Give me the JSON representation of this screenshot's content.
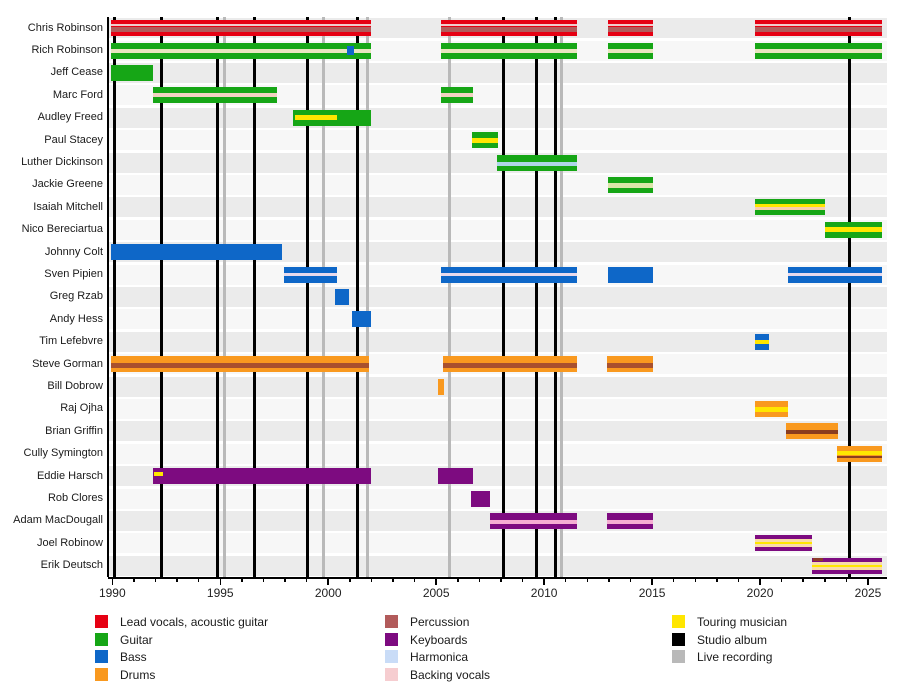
{
  "chart_data": {
    "type": "timeline",
    "title": "",
    "x_range": [
      1989.8,
      2025.88
    ],
    "x_ticks": {
      "start": 1990,
      "end": 2025,
      "minor_step": 1,
      "major_step": 5,
      "major_labels": [
        "1990",
        "1995",
        "2000",
        "2005",
        "2010",
        "2015",
        "2020",
        "2025"
      ]
    },
    "palette": {
      "lead_vocals": "#e60013",
      "guitar": "#16a616",
      "bass": "#0e67c8",
      "drums": "#f9991f",
      "percussion": "#b25b5b",
      "keyboards": "#7d0b80",
      "harmonica": "#c9dcf7",
      "backing_vocals": "#f6cdd0",
      "touring": "#ffe600",
      "studio_album": "#000000",
      "live_recording": "#b9b9b9"
    },
    "event_lines": {
      "studio_album": {
        "color": "#000000",
        "years": [
          1990.1,
          1992.27,
          1994.87,
          1996.58,
          1999.04,
          2001.35,
          2008.12,
          2009.65,
          2010.53,
          2024.16
        ]
      },
      "live_recording": {
        "color": "#b9b9b9",
        "years": [
          1995.19,
          1999.78,
          2001.82,
          2005.62,
          2010.81
        ]
      }
    },
    "members": [
      {
        "name": "Chris Robinson",
        "role": "lead_vocals",
        "bars": [
          [
            1989.95,
            2002.0
          ],
          [
            2005.2,
            2011.5
          ],
          [
            2012.95,
            2015.05
          ],
          [
            2019.75,
            2025.65
          ]
        ],
        "stripes": [
          {
            "c": "#f0cccc",
            "h": 2,
            "dy": -3
          },
          {
            "c": "#b25b5b",
            "h": 5,
            "dy": 1
          }
        ],
        "overlays": []
      },
      {
        "name": "Rich Robinson",
        "role": "guitar",
        "bars": [
          [
            1989.95,
            2002.0
          ],
          [
            2005.2,
            2011.5
          ],
          [
            2012.95,
            2015.05
          ],
          [
            2019.75,
            2025.65
          ]
        ],
        "stripes": [
          {
            "c": "#e9e6c0",
            "h": 4,
            "dy": 0
          }
        ],
        "overlays": [
          {
            "c": "#0e67c8",
            "s": 2000.85,
            "e": 2001.2,
            "h": 9,
            "dy": 0
          }
        ]
      },
      {
        "name": "Jeff Cease",
        "role": "guitar",
        "bars": [
          [
            1989.95,
            1991.9
          ]
        ],
        "stripes": [],
        "overlays": []
      },
      {
        "name": "Marc Ford",
        "role": "guitar",
        "bars": [
          [
            1991.9,
            1997.65
          ],
          [
            2005.2,
            2006.7
          ]
        ],
        "stripes": [
          {
            "c": "#f3d2c2",
            "h": 4,
            "dy": 0
          }
        ],
        "overlays": []
      },
      {
        "name": "Audley Freed",
        "role": "guitar",
        "bars": [
          [
            1998.35,
            2002.0
          ]
        ],
        "stripes": [],
        "overlays": [
          {
            "c": "#ffe600",
            "s": 1998.45,
            "e": 2000.4,
            "h": 5,
            "dy": 0
          }
        ]
      },
      {
        "name": "Paul Stacey",
        "role": "guitar",
        "bars": [
          [
            2006.65,
            2007.85
          ]
        ],
        "stripes": [
          {
            "c": "#ffe600",
            "h": 5,
            "dy": 0
          }
        ],
        "overlays": []
      },
      {
        "name": "Luther Dickinson",
        "role": "guitar",
        "bars": [
          [
            2007.8,
            2011.5
          ]
        ],
        "stripes": [
          {
            "c": "#aed6e8",
            "h": 4,
            "dy": 1
          }
        ],
        "overlays": []
      },
      {
        "name": "Jackie Greene",
        "role": "guitar",
        "bars": [
          [
            2012.95,
            2015.05
          ]
        ],
        "stripes": [
          {
            "c": "#dbe6a8",
            "h": 5,
            "dy": 0
          }
        ],
        "overlays": []
      },
      {
        "name": "Isaiah Mitchell",
        "role": "guitar",
        "bars": [
          [
            2019.75,
            2023.0
          ]
        ],
        "stripes": [
          {
            "c": "#ffe600",
            "h": 3,
            "dy": -2
          },
          {
            "c": "#f6cfae",
            "h": 3,
            "dy": 1
          }
        ],
        "overlays": []
      },
      {
        "name": "Nico Bereciartua",
        "role": "guitar",
        "bars": [
          [
            2023.0,
            2025.65
          ]
        ],
        "stripes": [
          {
            "c": "#ffe600",
            "h": 5,
            "dy": 0
          }
        ],
        "overlays": []
      },
      {
        "name": "Johnny Colt",
        "role": "bass",
        "bars": [
          [
            1989.95,
            1997.85
          ]
        ],
        "stripes": [],
        "overlays": []
      },
      {
        "name": "Sven Pipien",
        "role": "bass",
        "bars": [
          [
            1997.95,
            2000.4
          ],
          [
            2005.2,
            2011.5
          ],
          [
            2012.95,
            2015.05
          ],
          [
            2021.3,
            2025.65
          ]
        ],
        "stripes": [],
        "overlays": [
          {
            "c": "#e9daec",
            "s": 1997.95,
            "e": 2000.4,
            "h": 3,
            "dy": 0
          },
          {
            "c": "#e9daec",
            "s": 2005.2,
            "e": 2011.5,
            "h": 3,
            "dy": 0
          },
          {
            "c": "#e9daec",
            "s": 2021.3,
            "e": 2025.65,
            "h": 3,
            "dy": 0
          }
        ]
      },
      {
        "name": "Greg Rzab",
        "role": "bass",
        "bars": [
          [
            2000.3,
            2000.95
          ]
        ],
        "stripes": [],
        "overlays": []
      },
      {
        "name": "Andy Hess",
        "role": "bass",
        "bars": [
          [
            2001.1,
            2002.0
          ]
        ],
        "stripes": [],
        "overlays": []
      },
      {
        "name": "Tim Lefebvre",
        "role": "bass",
        "bars": [
          [
            2019.75,
            2020.4
          ]
        ],
        "stripes": [
          {
            "c": "#ffe600",
            "h": 4,
            "dy": 0
          }
        ],
        "overlays": []
      },
      {
        "name": "Steve Gorman",
        "role": "drums",
        "bars": [
          [
            1989.95,
            2001.9
          ],
          [
            2005.3,
            2011.5
          ],
          [
            2012.9,
            2015.05
          ]
        ],
        "stripes": [
          {
            "c": "#a8502e",
            "h": 5,
            "dy": 1
          }
        ],
        "overlays": []
      },
      {
        "name": "Bill Dobrow",
        "role": "drums",
        "bars": [
          [
            2005.1,
            2005.35
          ]
        ],
        "stripes": [],
        "overlays": []
      },
      {
        "name": "Raj Ojha",
        "role": "drums",
        "bars": [
          [
            2019.75,
            2021.3
          ]
        ],
        "stripes": [
          {
            "c": "#ffe600",
            "h": 5,
            "dy": 0
          }
        ],
        "overlays": []
      },
      {
        "name": "Brian Griffin",
        "role": "drums",
        "bars": [
          [
            2021.2,
            2023.6
          ]
        ],
        "stripes": [
          {
            "c": "#8a3c1e",
            "h": 4,
            "dy": 1
          }
        ],
        "overlays": []
      },
      {
        "name": "Cully Symington",
        "role": "drums",
        "bars": [
          [
            2023.55,
            2025.65
          ]
        ],
        "stripes": [
          {
            "c": "#ffe600",
            "h": 4,
            "dy": -1
          },
          {
            "c": "#8a3c1e",
            "h": 2,
            "dy": 3
          }
        ],
        "overlays": []
      },
      {
        "name": "Eddie Harsch",
        "role": "keyboards",
        "bars": [
          [
            1991.9,
            2002.0
          ],
          [
            2005.1,
            2006.7
          ]
        ],
        "stripes": [],
        "overlays": [
          {
            "c": "#ffe600",
            "s": 1991.95,
            "e": 1992.35,
            "h": 4,
            "dy": -2
          }
        ]
      },
      {
        "name": "Rob Clores",
        "role": "keyboards",
        "bars": [
          [
            2006.6,
            2007.5
          ]
        ],
        "stripes": [],
        "overlays": []
      },
      {
        "name": "Adam MacDougall",
        "role": "keyboards",
        "bars": [
          [
            2007.5,
            2011.5
          ],
          [
            2012.9,
            2015.05
          ]
        ],
        "stripes": [
          {
            "c": "#f5aed2",
            "h": 4,
            "dy": 1
          }
        ],
        "overlays": []
      },
      {
        "name": "Joel Robinow",
        "role": "keyboards",
        "bars": [
          [
            2019.75,
            2022.4
          ]
        ],
        "stripes": [
          {
            "c": "#f8dca8",
            "h": 8,
            "dy": 0
          },
          {
            "c": "#ffe600",
            "h": 2,
            "dy": 0
          }
        ],
        "overlays": []
      },
      {
        "name": "Erik Deutsch",
        "role": "keyboards",
        "bars": [
          [
            2022.4,
            2025.65
          ]
        ],
        "stripes": [
          {
            "c": "#f8dca8",
            "h": 8,
            "dy": 0
          },
          {
            "c": "#ffe600",
            "h": 2,
            "dy": 0
          }
        ],
        "overlays": [
          {
            "c": "#8b3a2a",
            "s": 2022.45,
            "e": 2022.9,
            "h": 3,
            "dy": -6
          }
        ]
      }
    ],
    "legend": {
      "columns": [
        [
          {
            "label": "Lead vocals, acoustic guitar",
            "color": "#e60013"
          },
          {
            "label": "Guitar",
            "color": "#16a616"
          },
          {
            "label": "Bass",
            "color": "#0e67c8"
          },
          {
            "label": "Drums",
            "color": "#f9991f"
          }
        ],
        [
          {
            "label": "Percussion",
            "color": "#b25b5b"
          },
          {
            "label": "Keyboards",
            "color": "#7d0b80"
          },
          {
            "label": "Harmonica",
            "color": "#c9dcf7"
          },
          {
            "label": "Backing vocals",
            "color": "#f6cdd0"
          }
        ],
        [
          {
            "label": "Touring musician",
            "color": "#ffe600"
          },
          {
            "label": "Studio album",
            "color": "#000000"
          },
          {
            "label": "Live recording",
            "color": "#b9b9b9"
          }
        ]
      ]
    }
  }
}
